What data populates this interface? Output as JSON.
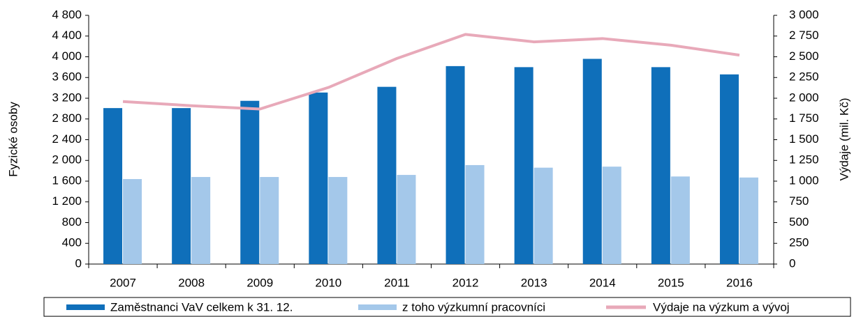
{
  "chart_data": {
    "type": "bar_line",
    "categories": [
      "2007",
      "2008",
      "2009",
      "2010",
      "2011",
      "2012",
      "2013",
      "2014",
      "2015",
      "2016"
    ],
    "series": [
      {
        "name": "Zaměstnanci VaV celkem k 31. 12.",
        "color": "#0f6fba",
        "type": "bar",
        "values": [
          3010,
          3010,
          3150,
          3310,
          3420,
          3820,
          3800,
          3960,
          3800,
          3660
        ]
      },
      {
        "name": "z toho výzkumní pracovníci",
        "color": "#a4c8ea",
        "type": "bar",
        "values": [
          1640,
          1680,
          1680,
          1680,
          1720,
          1910,
          1860,
          1880,
          1690,
          1670
        ]
      },
      {
        "name": "Výdaje na výzkum a vývoj",
        "color": "#e8a9b9",
        "type": "line",
        "axis": "y2",
        "values": [
          1960,
          1910,
          1870,
          2130,
          2480,
          2770,
          2680,
          2720,
          2640,
          2520
        ]
      }
    ],
    "ylabel": "Fyzické osoby",
    "y2label": "Výdaje (mil. Kč)",
    "ylim": [
      0,
      4800
    ],
    "yticks": [
      0,
      400,
      800,
      {
        "value": 1200,
        "label": "1 200"
      },
      {
        "value": 1600,
        "label": "1 600"
      },
      {
        "value": 2000,
        "label": "2 000"
      },
      {
        "value": 2400,
        "label": "2 400"
      },
      {
        "value": 2800,
        "label": "2 800"
      },
      {
        "value": 3200,
        "label": "3 200"
      },
      {
        "value": 3600,
        "label": "3 600"
      },
      {
        "value": 4000,
        "label": "4 000"
      },
      {
        "value": 4400,
        "label": "4 400"
      },
      {
        "value": 4800,
        "label": "4 800"
      }
    ],
    "y2lim": [
      0,
      3000
    ],
    "y2ticks": [
      0,
      250,
      500,
      750,
      {
        "value": 1000,
        "label": "1 000"
      },
      {
        "value": 1250,
        "label": "1 250"
      },
      {
        "value": 1500,
        "label": "1 500"
      },
      {
        "value": 1750,
        "label": "1 750"
      },
      {
        "value": 2000,
        "label": "2 000"
      },
      {
        "value": 2250,
        "label": "2 250"
      },
      {
        "value": 2500,
        "label": "2 500"
      },
      {
        "value": 2750,
        "label": "2 750"
      },
      {
        "value": 3000,
        "label": "3 000"
      }
    ],
    "legend": "bottom",
    "grid": false
  }
}
